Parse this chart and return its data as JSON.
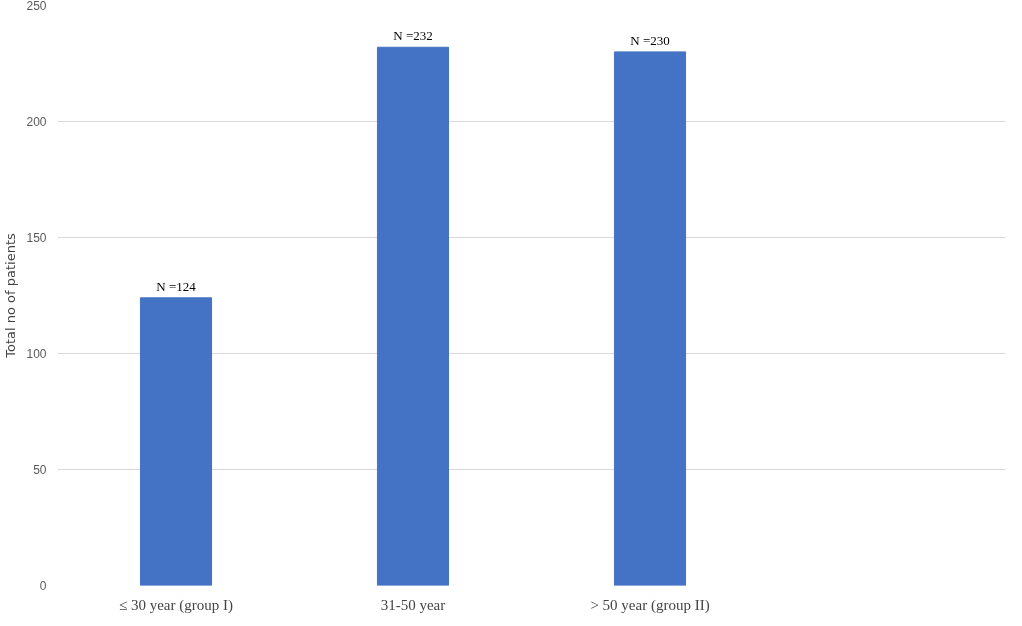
{
  "chart_data": {
    "type": "bar",
    "categories": [
      "≤ 30 year (group I)",
      "31-50 year",
      "> 50 year (group II)",
      null
    ],
    "values": [
      124,
      232,
      230,
      null
    ],
    "color": "#4472c4",
    "ylabel": "Total no of patients",
    "ylim": [
      0,
      250
    ],
    "yticks": [
      0,
      50,
      100,
      150,
      200,
      250
    ],
    "grid": "y",
    "data_labels": true,
    "value_labels": [
      "N =124",
      "N =232",
      "N =230",
      null
    ]
  }
}
